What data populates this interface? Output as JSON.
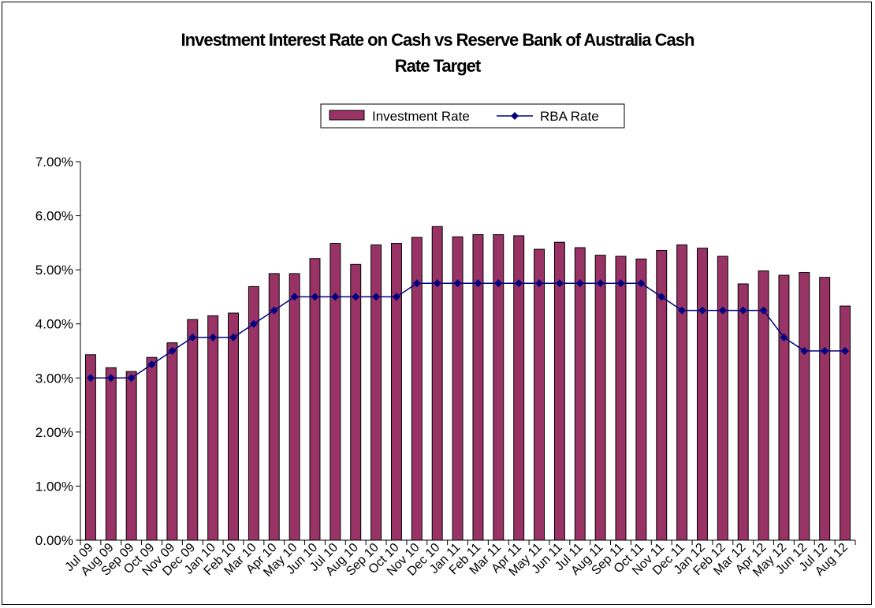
{
  "chart_data": {
    "type": "bar",
    "title_line1": "Investment Interest Rate on Cash vs Reserve Bank of Australia Cash",
    "title_line2": "Rate Target",
    "categories": [
      "Jul 09",
      "Aug 09",
      "Sep 09",
      "Oct 09",
      "Nov 09",
      "Dec 09",
      "Jan 10",
      "Feb 10",
      "Mar 10",
      "Apr 10",
      "May 10",
      "Jun 10",
      "Jul 10",
      "Aug 10",
      "Sep 10",
      "Oct 10",
      "Nov 10",
      "Dec 10",
      "Jan 11",
      "Feb 11",
      "Mar 11",
      "Apr 11",
      "May 11",
      "Jun 11",
      "Jul 11",
      "Aug 11",
      "Sep 11",
      "Oct 11",
      "Nov 11",
      "Dec 11",
      "Jan 12",
      "Feb 12",
      "Mar 12",
      "Apr 12",
      "May 12",
      "Jun 12",
      "Jul 12",
      "Aug 12"
    ],
    "tick_labels": [
      "Jul 09",
      "Aug 09",
      "Sep 09",
      "Oct 09",
      "Nov 09",
      "Dec 09",
      "Jan 10",
      "Feb 10",
      "Mar 10",
      "Apr 10",
      "May 10",
      "Jun 10",
      "Jul 10",
      "Aug 10",
      "Sep 10",
      "Oct 10",
      "Nov 10",
      "Dec 10",
      "Jan 11",
      "Feb 11",
      "Mar 11",
      "Apr 11",
      "May 11",
      "Jun 11",
      "Jul 11",
      "Aug 11",
      "Sep 11",
      "Oct 11",
      "Nov 11",
      "Dec 11",
      "Jan 12",
      "Feb 12",
      "Mar 12",
      "Apr 12",
      "May 12",
      "Jun 12",
      "Jul 12",
      "Aug 12"
    ],
    "series": [
      {
        "name": "Investment Rate",
        "type": "bar",
        "color": "#993366",
        "values": [
          3.43,
          3.19,
          3.12,
          3.38,
          3.65,
          4.08,
          4.15,
          4.2,
          4.69,
          4.93,
          4.93,
          5.21,
          5.49,
          5.1,
          5.46,
          5.49,
          5.6,
          5.8,
          5.61,
          5.65,
          5.65,
          5.63,
          5.38,
          5.51,
          5.41,
          5.27,
          5.25,
          5.2,
          5.36,
          5.46,
          5.4,
          5.25,
          4.74,
          4.98,
          4.9,
          4.95,
          4.86,
          4.33
        ]
      },
      {
        "name": "RBA Rate",
        "type": "line",
        "color": "#000080",
        "marker": "diamond",
        "values": [
          3.0,
          3.0,
          3.0,
          3.25,
          3.5,
          3.75,
          3.75,
          3.75,
          4.0,
          4.25,
          4.5,
          4.5,
          4.5,
          4.5,
          4.5,
          4.5,
          4.75,
          4.75,
          4.75,
          4.75,
          4.75,
          4.75,
          4.75,
          4.75,
          4.75,
          4.75,
          4.75,
          4.75,
          4.5,
          4.25,
          4.25,
          4.25,
          4.25,
          4.25,
          3.75,
          3.5,
          3.5,
          3.5
        ]
      }
    ],
    "y_ticks": [
      "0.00%",
      "1.00%",
      "2.00%",
      "3.00%",
      "4.00%",
      "5.00%",
      "6.00%",
      "7.00%"
    ],
    "ylim": [
      0,
      7
    ],
    "ylabel": "",
    "xlabel": "",
    "grid": false,
    "legend_position": "top-center"
  }
}
